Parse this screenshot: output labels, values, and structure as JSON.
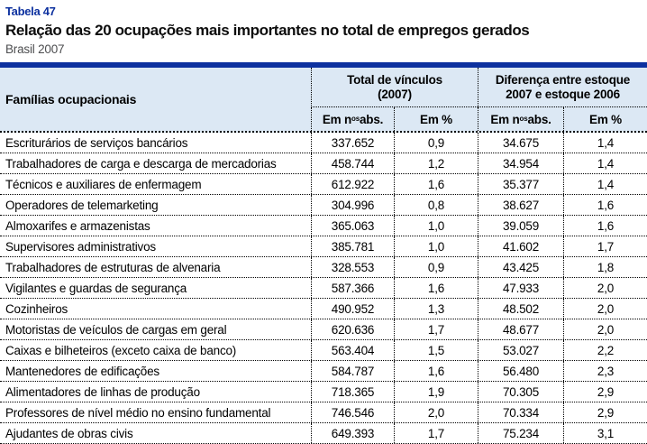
{
  "title_block": {
    "table_number": "Tabela 47",
    "title": "Relação das 20 ocupações mais importantes no total de empregos gerados",
    "subtitle": "Brasil 2007"
  },
  "table": {
    "col_families": "Famílias ocupacionais",
    "group_total": "Total de vínculos\n(2007)",
    "group_diff": "Diferença entre estoque\n2007 e estoque 2006",
    "sub_abs": {
      "pre": "Em n",
      "sup": "os",
      "post": " abs."
    },
    "sub_pct": "Em %"
  },
  "rows": [
    {
      "name": "Escriturários de serviços bancários",
      "total_abs": "337.652",
      "total_pct": "0,9",
      "diff_abs": "34.675",
      "diff_pct": "1,4"
    },
    {
      "name": "Trabalhadores de carga e descarga de mercadorias",
      "total_abs": "458.744",
      "total_pct": "1,2",
      "diff_abs": "34.954",
      "diff_pct": "1,4"
    },
    {
      "name": "Técnicos e auxiliares de enfermagem",
      "total_abs": "612.922",
      "total_pct": "1,6",
      "diff_abs": "35.377",
      "diff_pct": "1,4"
    },
    {
      "name": "Operadores de telemarketing",
      "total_abs": "304.996",
      "total_pct": "0,8",
      "diff_abs": "38.627",
      "diff_pct": "1,6"
    },
    {
      "name": "Almoxarifes e armazenistas",
      "total_abs": "365.063",
      "total_pct": "1,0",
      "diff_abs": "39.059",
      "diff_pct": "1,6"
    },
    {
      "name": "Supervisores administrativos",
      "total_abs": "385.781",
      "total_pct": "1,0",
      "diff_abs": "41.602",
      "diff_pct": "1,7"
    },
    {
      "name": "Trabalhadores de estruturas de alvenaria",
      "total_abs": "328.553",
      "total_pct": "0,9",
      "diff_abs": "43.425",
      "diff_pct": "1,8"
    },
    {
      "name": "Vigilantes e guardas de segurança",
      "total_abs": "587.366",
      "total_pct": "1,6",
      "diff_abs": "47.933",
      "diff_pct": "2,0"
    },
    {
      "name": "Cozinheiros",
      "total_abs": "490.952",
      "total_pct": "1,3",
      "diff_abs": "48.502",
      "diff_pct": "2,0"
    },
    {
      "name": "Motoristas de veículos de cargas em geral",
      "total_abs": "620.636",
      "total_pct": "1,7",
      "diff_abs": "48.677",
      "diff_pct": "2,0"
    },
    {
      "name": "Caixas e bilheteiros (exceto caixa de banco)",
      "total_abs": "563.404",
      "total_pct": "1,5",
      "diff_abs": "53.027",
      "diff_pct": "2,2"
    },
    {
      "name": "Mantenedores de edificações",
      "total_abs": "584.787",
      "total_pct": "1,6",
      "diff_abs": "56.480",
      "diff_pct": "2,3"
    },
    {
      "name": "Alimentadores de linhas de produção",
      "total_abs": "718.365",
      "total_pct": "1,9",
      "diff_abs": "70.305",
      "diff_pct": "2,9"
    },
    {
      "name": "Professores de nível médio no ensino fundamental",
      "total_abs": "746.546",
      "total_pct": "2,0",
      "diff_abs": "70.334",
      "diff_pct": "2,9"
    },
    {
      "name": "Ajudantes de obras civis",
      "total_abs": "649.393",
      "total_pct": "1,7",
      "diff_abs": "75.234",
      "diff_pct": "3,1"
    }
  ],
  "colors": {
    "accent_blue": "#0d319f",
    "header_bg": "#dce8f4",
    "subtitle_gray": "#4d4e50",
    "border_black": "#000000"
  }
}
